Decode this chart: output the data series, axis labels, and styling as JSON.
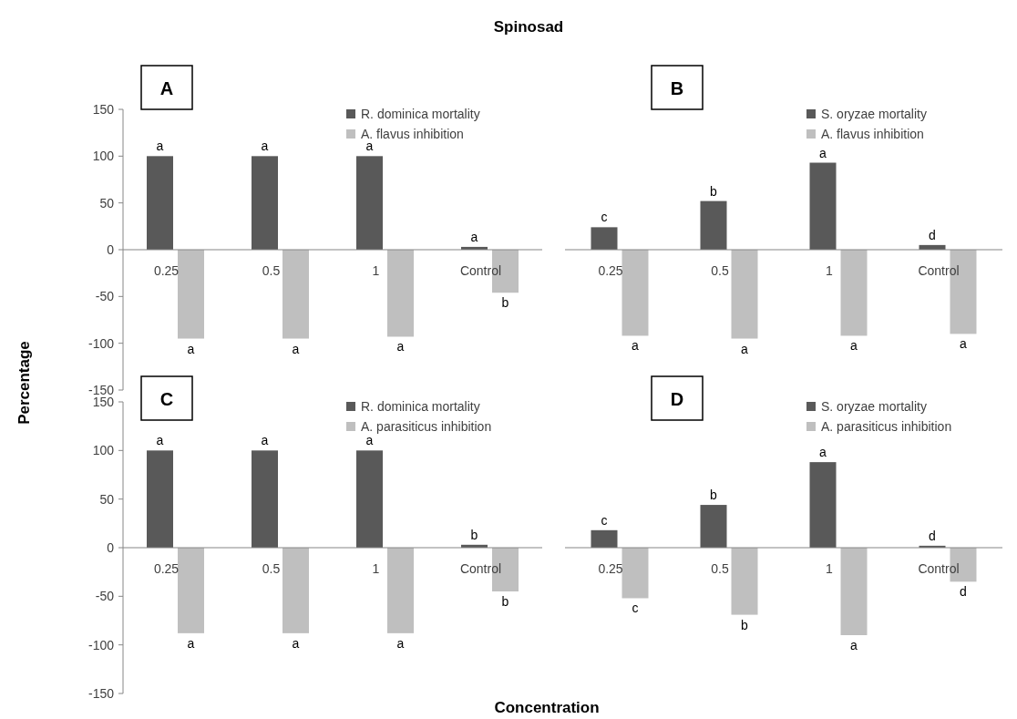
{
  "chart_data": [
    {
      "type": "bar",
      "title": "Spinosad",
      "ylabel": "Percentage",
      "categories": [
        "0.25",
        "0.5",
        "1",
        "Control"
      ],
      "ylim": [
        -150,
        150
      ],
      "yticks": [
        -150,
        -100,
        -50,
        0,
        50,
        100,
        150
      ],
      "legend": "top right",
      "series": [
        {
          "name": "R. dominica mortality",
          "color": "#595959",
          "values": [
            100,
            100,
            100,
            3
          ],
          "value_labels": [
            "a",
            "a",
            "a",
            "a"
          ]
        },
        {
          "name": "A. flavus inhibition",
          "color": "#bfbfbf",
          "values": [
            -95,
            -95,
            -93,
            -46
          ],
          "value_labels": [
            "a",
            "a",
            "a",
            "b"
          ]
        }
      ],
      "annotations": [
        "A"
      ]
    },
    {
      "type": "bar",
      "categories": [
        "0.25",
        "0.5",
        "1",
        "Control"
      ],
      "ylim": [
        -150,
        150
      ],
      "tick_labels": "x",
      "legend": "top right",
      "series": [
        {
          "name": "S. oryzae mortality",
          "color": "#595959",
          "values": [
            24,
            52,
            93,
            5
          ],
          "value_labels": [
            "c",
            "b",
            "a",
            "d"
          ]
        },
        {
          "name": "A. flavus inhibition",
          "color": "#bfbfbf",
          "values": [
            -92,
            -95,
            -92,
            -90
          ],
          "value_labels": [
            "a",
            "a",
            "a",
            "a"
          ]
        }
      ],
      "annotations": [
        "B"
      ]
    },
    {
      "type": "bar",
      "xlabel": "Concentration",
      "categories": [
        "0.25",
        "0.5",
        "1",
        "Control"
      ],
      "ylim": [
        -150,
        150
      ],
      "yticks": [
        -150,
        -100,
        -50,
        0,
        50,
        100,
        150
      ],
      "legend": "top right",
      "series": [
        {
          "name": "R. dominica mortality",
          "color": "#595959",
          "values": [
            100,
            100,
            100,
            3
          ],
          "value_labels": [
            "a",
            "a",
            "a",
            "b"
          ]
        },
        {
          "name": "A. parasiticus inhibition",
          "color": "#bfbfbf",
          "values": [
            -88,
            -88,
            -88,
            -45
          ],
          "value_labels": [
            "a",
            "a",
            "a",
            "b"
          ]
        }
      ],
      "annotations": [
        "C"
      ]
    },
    {
      "type": "bar",
      "categories": [
        "0.25",
        "0.5",
        "1",
        "Control"
      ],
      "ylim": [
        -150,
        150
      ],
      "tick_labels": "x",
      "legend": "top right",
      "series": [
        {
          "name": "S. oryzae mortality",
          "color": "#595959",
          "values": [
            18,
            44,
            88,
            2
          ],
          "value_labels": [
            "c",
            "b",
            "a",
            "d"
          ]
        },
        {
          "name": "A. parasiticus inhibition",
          "color": "#bfbfbf",
          "values": [
            -52,
            -69,
            -90,
            -35
          ],
          "value_labels": [
            "c",
            "b",
            "a",
            "d"
          ]
        }
      ],
      "annotations": [
        "D"
      ]
    }
  ]
}
